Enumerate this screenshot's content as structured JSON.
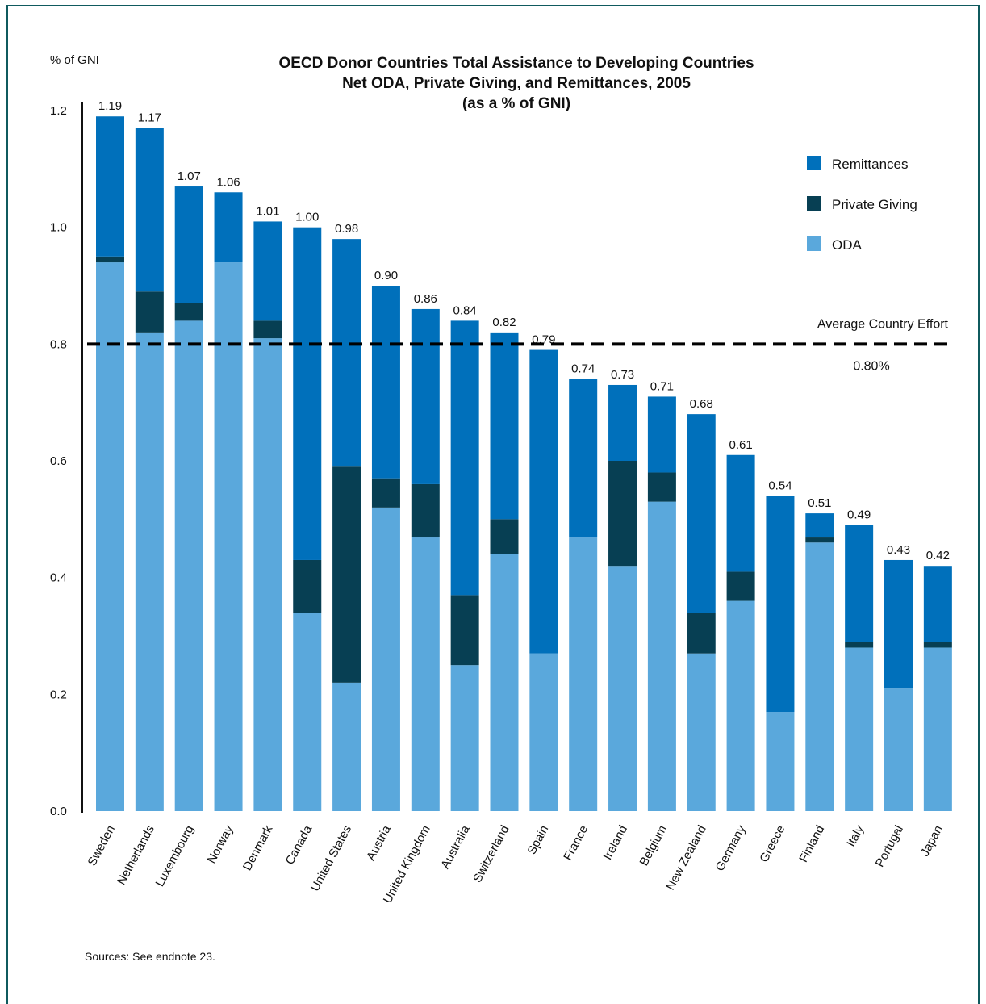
{
  "chart_data": {
    "type": "bar",
    "stacked": true,
    "title": [
      "OECD Donor Countries Total Assistance to Developing Countries",
      "Net ODA, Private Giving, and Remittances, 2005",
      "(as a % of GNI)"
    ],
    "ylabel": "% of GNI",
    "ylim": [
      0,
      1.2
    ],
    "yticks": [
      "0.0",
      "0.2",
      "0.4",
      "0.6",
      "0.8",
      "1.0",
      "1.2"
    ],
    "ytick_values": [
      0,
      0.2,
      0.4,
      0.6,
      0.8,
      1.0,
      1.2
    ],
    "categories": [
      "Sweden",
      "Netherlands",
      "Luxembourg",
      "Norway",
      "Denmark",
      "Canada",
      "United States",
      "Austria",
      "United Kingdom",
      "Australia",
      "Switzerland",
      "Spain",
      "France",
      "Ireland",
      "Belgium",
      "New Zealand",
      "Germany",
      "Greece",
      "Finland",
      "Italy",
      "Portugal",
      "Japan"
    ],
    "series": [
      {
        "name": "ODA",
        "color": "#5aa8dc",
        "values": [
          0.94,
          0.82,
          0.84,
          0.94,
          0.81,
          0.34,
          0.22,
          0.52,
          0.47,
          0.25,
          0.44,
          0.27,
          0.47,
          0.42,
          0.53,
          0.27,
          0.36,
          0.17,
          0.46,
          0.28,
          0.21,
          0.28
        ]
      },
      {
        "name": "Private Giving",
        "color": "#073f53",
        "values": [
          0.01,
          0.07,
          0.03,
          0,
          0.03,
          0.09,
          0.37,
          0.05,
          0.09,
          0.12,
          0.06,
          0,
          0,
          0.18,
          0.05,
          0.07,
          0.05,
          0,
          0.01,
          0.01,
          0,
          0.01
        ]
      },
      {
        "name": "Remittances",
        "color": "#0070bb",
        "values": [
          0.24,
          0.28,
          0.2,
          0.12,
          0.17,
          0.57,
          0.39,
          0.33,
          0.3,
          0.47,
          0.32,
          0.52,
          0.27,
          0.13,
          0.13,
          0.34,
          0.2,
          0.37,
          0.04,
          0.2,
          0.22,
          0.13
        ]
      }
    ],
    "totals": [
      "1.19",
      "1.17",
      "1.07",
      "1.06",
      "1.01",
      "1.00",
      "0.98",
      "0.90",
      "0.86",
      "0.84",
      "0.82",
      "0.79",
      "0.74",
      "0.73",
      "0.71",
      "0.68",
      "0.61",
      "0.54",
      "0.51",
      "0.49",
      "0.43",
      "0.42"
    ],
    "legend": {
      "position": "top-right",
      "entries": [
        "Remittances",
        "Private Giving",
        "ODA"
      ]
    },
    "reference_line": {
      "value": 0.8,
      "label": "Average Country Effort",
      "value_label": "0.80%",
      "style": "dashed"
    },
    "grid": false
  },
  "source_note": "Sources: See endnote 23."
}
